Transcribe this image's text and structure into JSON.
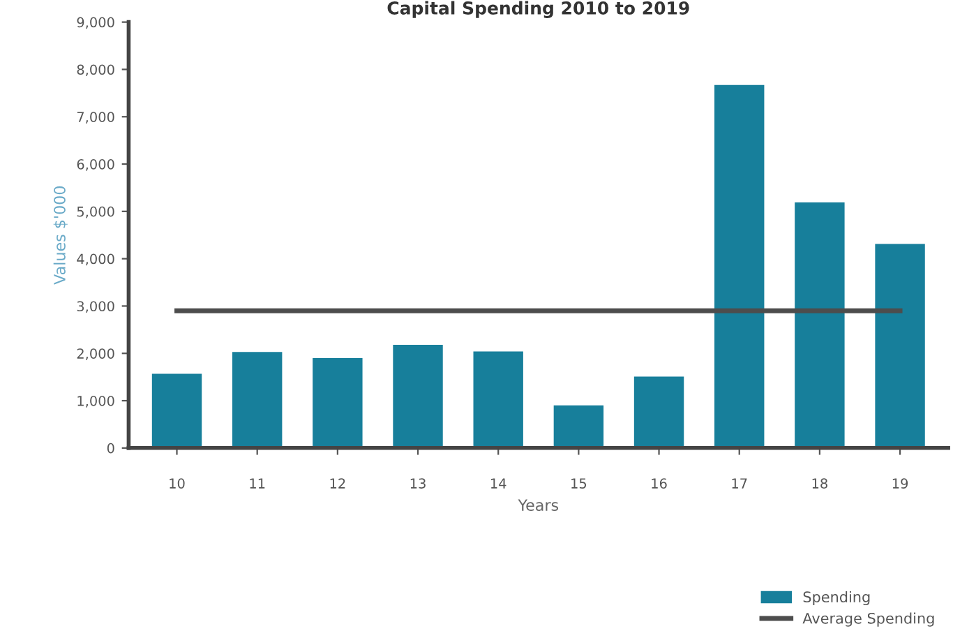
{
  "chart_data": {
    "type": "bar",
    "title": "Capital Spending 2010 to 2019",
    "xlabel": "Years",
    "ylabel": "Values $'000",
    "categories": [
      "10",
      "11",
      "12",
      "13",
      "14",
      "15",
      "16",
      "17",
      "18",
      "19"
    ],
    "series": [
      {
        "name": "Spending",
        "color": "#177f9b",
        "values": [
          1570,
          2030,
          1900,
          2180,
          2040,
          900,
          1510,
          7670,
          5190,
          4310
        ]
      },
      {
        "name": "Average Spending",
        "type": "line",
        "color": "#4d4d4d",
        "values": [
          2900,
          2900,
          2900,
          2900,
          2900,
          2900,
          2900,
          2900,
          2900,
          2900
        ]
      }
    ],
    "ylim": [
      0,
      9000
    ],
    "yticks": [
      {
        "value": 0,
        "label": "0"
      },
      {
        "value": 1000,
        "label": "1,000"
      },
      {
        "value": 2000,
        "label": "2,000"
      },
      {
        "value": 3000,
        "label": "3,000"
      },
      {
        "value": 4000,
        "label": "4,000"
      },
      {
        "value": 5000,
        "label": "5,000"
      },
      {
        "value": 6000,
        "label": "6,000"
      },
      {
        "value": 7000,
        "label": "7,000"
      },
      {
        "value": 8000,
        "label": "8,000"
      },
      {
        "value": 9000,
        "label": "9,000"
      }
    ],
    "grid": false,
    "legend": "bottom right"
  }
}
